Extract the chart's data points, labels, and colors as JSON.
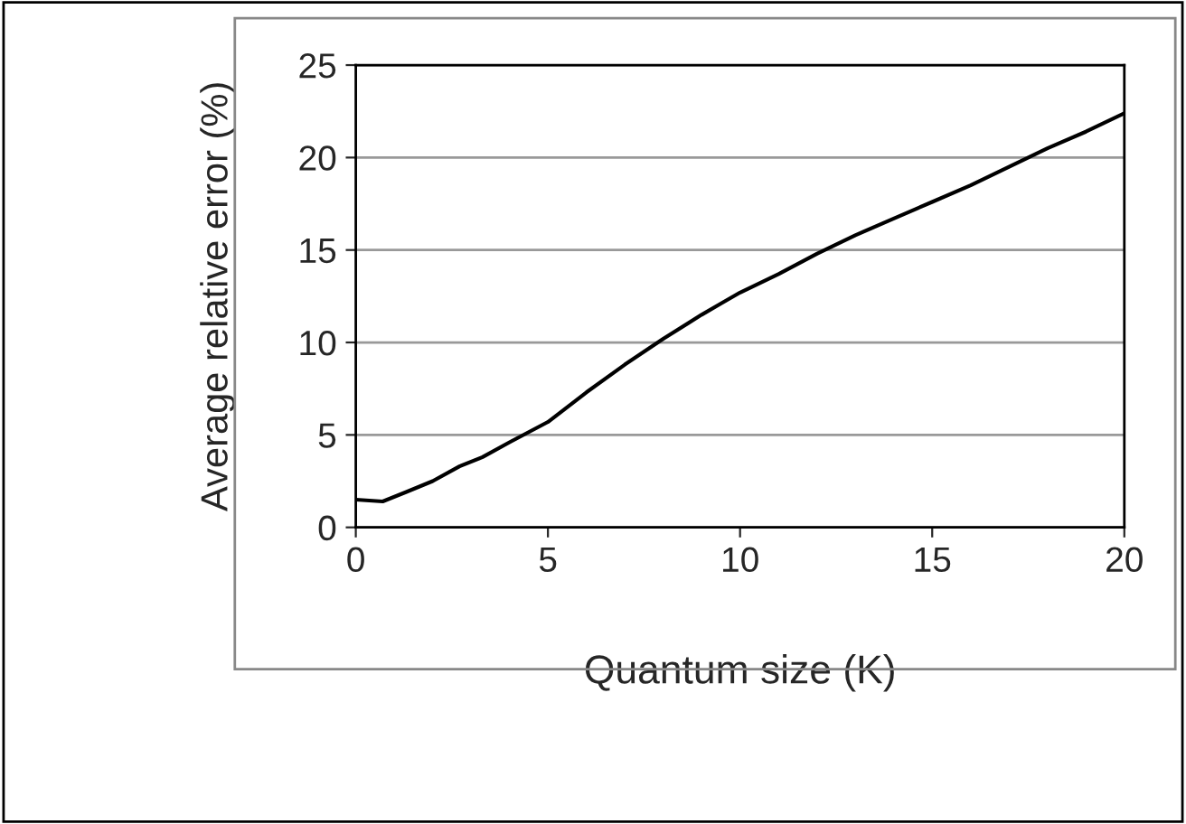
{
  "chart_data": {
    "type": "line",
    "xlabel": "Quantum size (K)",
    "ylabel": "Average relative error (%)",
    "series": [
      {
        "color": "#000000",
        "x": [
          0,
          0.7,
          1.3,
          2,
          2.7,
          3.3,
          4,
          5,
          6,
          7,
          8,
          9,
          9.5,
          10,
          11,
          12,
          13,
          14,
          15,
          16,
          17,
          18,
          19,
          20
        ],
        "values": [
          1.5,
          1.4,
          1.9,
          2.5,
          3.3,
          3.8,
          4.6,
          5.7,
          7.3,
          8.8,
          10.2,
          11.5,
          12.1,
          12.7,
          13.7,
          14.8,
          15.8,
          16.7,
          17.6,
          18.5,
          19.5,
          20.5,
          21.4,
          22.4
        ]
      }
    ],
    "xlim": [
      0,
      20
    ],
    "xticks": [
      0,
      5,
      10,
      15,
      20
    ],
    "ylim": [
      0,
      25
    ],
    "yticks": [
      0,
      5,
      10,
      15,
      20,
      25
    ],
    "grid": "y",
    "legend": false,
    "marker": "none",
    "line_style": "solid"
  }
}
